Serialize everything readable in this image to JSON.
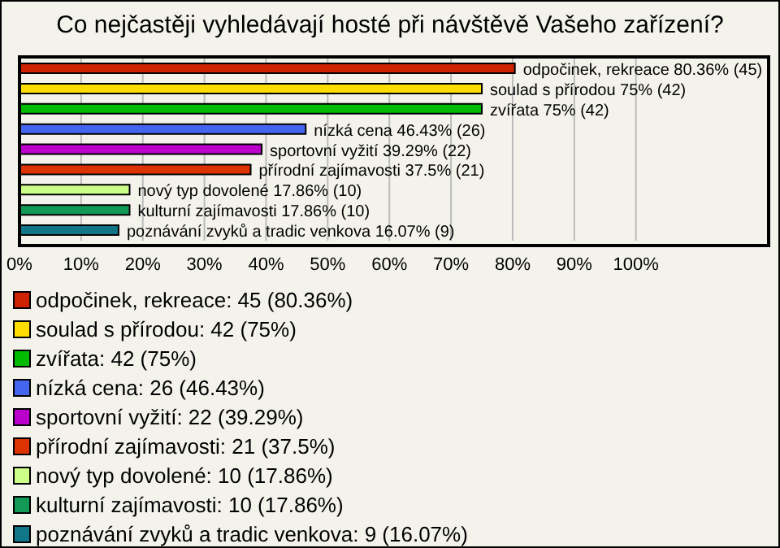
{
  "chart_data": {
    "type": "bar",
    "orientation": "horizontal",
    "title": "Co nejčastěji vyhledávají hosté při návštěvě Vašeho zařízení?",
    "categories": [
      null,
      null,
      null,
      null,
      null,
      null,
      null,
      null,
      null
    ],
    "values": [
      80.36,
      75,
      75,
      46.43,
      39.29,
      37.5,
      17.86,
      17.86,
      16.07
    ],
    "colors": [
      "#cc2200",
      "#ffdd00",
      "#00bb00",
      "#4466ee",
      "#bb00cc",
      "#dd3300",
      "#ccff88",
      "#119955",
      "#117788"
    ],
    "value_labels": [
      "odpočinek, rekreace 80.36% (45)",
      "soulad s přírodou 75% (42)",
      "zvířata 75% (42)",
      "nízká cena 46.43% (26)",
      "sportovní vyžití 39.29% (22)",
      "přírodní zajímavosti 37.5% (21)",
      "nový typ dovolené 17.86% (10)",
      "kulturní zajímavosti 17.86% (10)",
      "poznávání zvyků a tradic venkova 16.07% (9)"
    ],
    "xlim": [
      0,
      121
    ],
    "xticks": [
      {
        "value": 0,
        "label": "0%"
      },
      {
        "value": 10,
        "label": "10%"
      },
      {
        "value": 20,
        "label": "20%"
      },
      {
        "value": 30,
        "label": "30%"
      },
      {
        "value": 40,
        "label": "40%"
      },
      {
        "value": 50,
        "label": "50%"
      },
      {
        "value": 60,
        "label": "60%"
      },
      {
        "value": 70,
        "label": "70%"
      },
      {
        "value": 80,
        "label": "80%"
      },
      {
        "value": 90,
        "label": "90%"
      },
      {
        "value": 100,
        "label": "100%"
      }
    ],
    "grid": "x",
    "annotations": [
      "odpočinek, rekreace: 45 (80.36%)",
      "soulad s přírodou: 42 (75%)",
      "zvířata: 42 (75%)",
      "nízká cena: 26 (46.43%)",
      "sportovní vyžití: 22 (39.29%)",
      "přírodní zajímavosti: 21 (37.5%)",
      "nový typ dovolené: 10 (17.86%)",
      "kulturní zajímavosti: 10 (17.86%)",
      "poznávání zvyků a tradic venkova: 9 (16.07%)"
    ]
  }
}
